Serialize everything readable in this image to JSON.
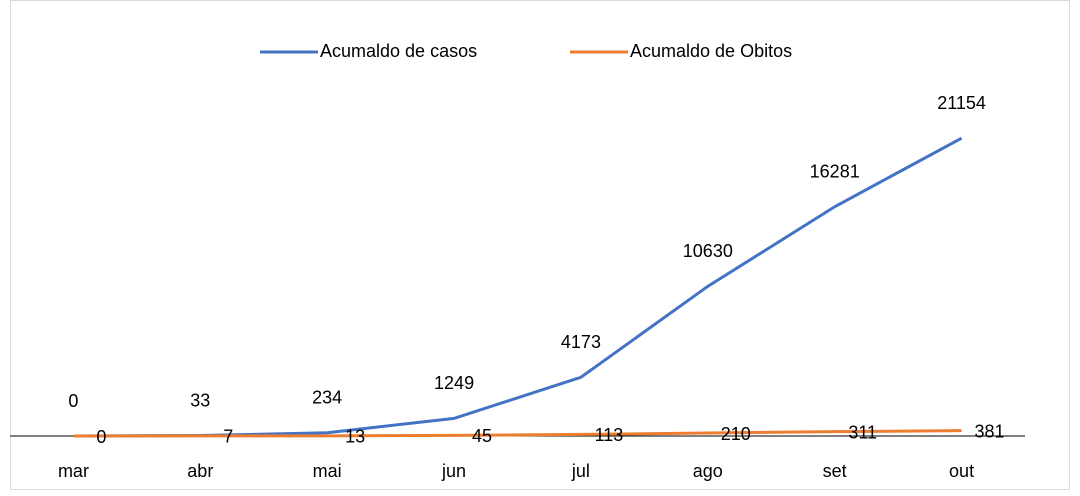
{
  "chart_data": {
    "type": "line",
    "categories": [
      "mar",
      "abr",
      "mai",
      "jun",
      "jul",
      "ago",
      "set",
      "out"
    ],
    "series": [
      {
        "name": "Acumaldo de casos",
        "color": "#4472c4",
        "values": [
          0,
          33,
          234,
          1249,
          4173,
          10630,
          16281,
          21154
        ]
      },
      {
        "name": "Acumaldo de Obitos",
        "color": "#ed7d31",
        "values": [
          0,
          7,
          13,
          45,
          113,
          210,
          311,
          381
        ]
      }
    ],
    "ylim": [
      0,
      25000
    ],
    "legend": "top",
    "data_labels": true
  }
}
